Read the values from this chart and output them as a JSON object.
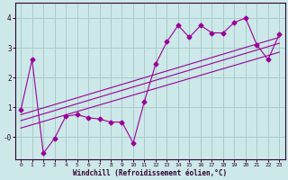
{
  "xlabel": "Windchill (Refroidissement éolien,°C)",
  "bg_color": "#cce8e8",
  "grid_color": "#aacccc",
  "line_color": "#990099",
  "spine_color": "#330033",
  "xlim": [
    -0.5,
    23.5
  ],
  "ylim": [
    -0.75,
    4.5
  ],
  "xticks": [
    0,
    1,
    2,
    3,
    4,
    5,
    6,
    7,
    8,
    9,
    10,
    11,
    12,
    13,
    14,
    15,
    16,
    17,
    18,
    19,
    20,
    21,
    22,
    23
  ],
  "yticks": [
    0,
    1,
    2,
    3,
    4
  ],
  "ytick_labels": [
    "-0",
    "1",
    "2",
    "3",
    "4"
  ],
  "data_x": [
    0,
    1,
    2,
    3,
    4,
    5,
    6,
    7,
    8,
    9,
    10,
    11,
    12,
    13,
    14,
    15,
    16,
    17,
    18,
    19,
    20,
    21,
    22,
    23
  ],
  "data_y": [
    0.9,
    2.6,
    -0.55,
    -0.05,
    0.7,
    0.75,
    0.65,
    0.6,
    0.5,
    0.5,
    -0.2,
    1.2,
    2.45,
    3.2,
    3.75,
    3.35,
    3.75,
    3.5,
    3.5,
    3.85,
    4.0,
    3.1,
    2.6,
    3.45
  ],
  "trend1_x": [
    0,
    23
  ],
  "trend1_y": [
    0.55,
    3.15
  ],
  "trend2_x": [
    0,
    23
  ],
  "trend2_y": [
    0.75,
    3.35
  ],
  "trend3_x": [
    0,
    23
  ],
  "trend3_y": [
    0.3,
    2.85
  ]
}
